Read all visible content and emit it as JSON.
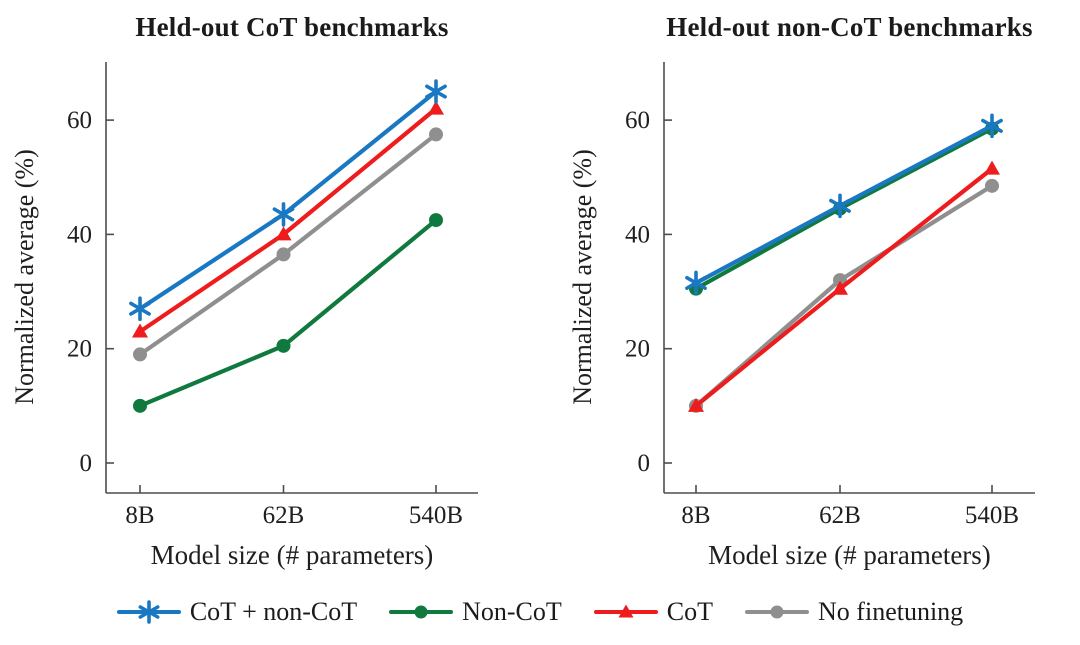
{
  "figure": {
    "background": "#ffffff",
    "axis_color": "#4d4d4d",
    "text_color": "#1f1f1f"
  },
  "chart_data": [
    {
      "type": "line",
      "title": "Held-out CoT benchmarks",
      "xlabel": "Model size (# parameters)",
      "ylabel": "Normalized average (%)",
      "x_scale": "log",
      "categories": [
        "8B",
        "62B",
        "540B"
      ],
      "yticks": [
        0,
        20,
        40,
        60
      ],
      "ylim": [
        0,
        70
      ],
      "grid": false,
      "series": [
        {
          "name": "CoT + non-CoT",
          "marker": "star",
          "color": "#1a78c2",
          "values": [
            27,
            43.5,
            65
          ]
        },
        {
          "name": "Non-CoT",
          "marker": "circle",
          "color": "#107a3e",
          "values": [
            10,
            20.5,
            42.5
          ]
        },
        {
          "name": "CoT",
          "marker": "triangle",
          "color": "#ee1c1c",
          "values": [
            23,
            40,
            62
          ]
        },
        {
          "name": "No finetuning",
          "marker": "circle",
          "color": "#8f8f8f",
          "values": [
            19,
            36.5,
            57.5
          ]
        }
      ]
    },
    {
      "type": "line",
      "title": "Held-out non-CoT benchmarks",
      "xlabel": "Model size (# parameters)",
      "ylabel": "Normalized average (%)",
      "x_scale": "log",
      "categories": [
        "8B",
        "62B",
        "540B"
      ],
      "yticks": [
        0,
        20,
        40,
        60
      ],
      "ylim": [
        0,
        70
      ],
      "grid": false,
      "series": [
        {
          "name": "CoT + non-CoT",
          "marker": "star",
          "color": "#1a78c2",
          "values": [
            31.5,
            45,
            59
          ]
        },
        {
          "name": "Non-CoT",
          "marker": "circle",
          "color": "#107a3e",
          "values": [
            30.5,
            44.5,
            58.5
          ]
        },
        {
          "name": "CoT",
          "marker": "triangle",
          "color": "#ee1c1c",
          "values": [
            10,
            30.5,
            51.5
          ]
        },
        {
          "name": "No finetuning",
          "marker": "circle",
          "color": "#8f8f8f",
          "values": [
            10,
            32,
            48.5
          ]
        }
      ]
    }
  ],
  "legend": {
    "position": "bottom-center",
    "items": [
      {
        "label": "CoT + non-CoT",
        "marker": "star",
        "color": "#1a78c2"
      },
      {
        "label": "Non-CoT",
        "marker": "circle",
        "color": "#107a3e"
      },
      {
        "label": "CoT",
        "marker": "triangle",
        "color": "#ee1c1c"
      },
      {
        "label": "No finetuning",
        "marker": "circle",
        "color": "#8f8f8f"
      }
    ]
  }
}
